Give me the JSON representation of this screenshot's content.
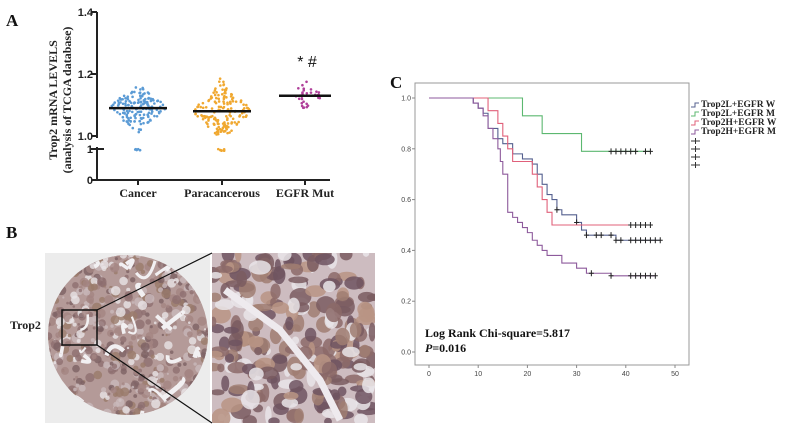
{
  "panels": {
    "a": "A",
    "b": "B",
    "c": "C"
  },
  "chart_data": [
    {
      "type": "scatter",
      "ylabel_line1": "Trop2 mRNA LEVELS",
      "ylabel_line2": "(analysis of TCGA database)",
      "y_ticks_upper": [
        "1.4",
        "1.2",
        "1.0"
      ],
      "y_ticks_lower": [
        "1",
        "0"
      ],
      "ylim": [
        0,
        1.4
      ],
      "axis_break": [
        1.0,
        1.0
      ],
      "categories": [
        "Cancer",
        "Paracancerous",
        "EGFR Mut"
      ],
      "means": [
        1.09,
        1.08,
        1.13
      ],
      "ranges": [
        [
          0.96,
          1.16
        ],
        [
          0.94,
          1.19
        ],
        [
          1.08,
          1.18
        ]
      ],
      "point_colors": [
        "#5b9bd5",
        "#f0a830",
        "#b0409a"
      ],
      "annotation": "* #"
    },
    {
      "type": "line",
      "subtype": "kaplan-meier",
      "x_ticks": [
        "0",
        "10",
        "20",
        "30",
        "40",
        "50"
      ],
      "y_ticks": [
        "0.0",
        "0.2",
        "0.4",
        "0.6",
        "0.8",
        "1.0"
      ],
      "xlim": [
        0,
        50
      ],
      "ylim": [
        0,
        1
      ],
      "series": [
        {
          "name": "Trop2L+EGFR W",
          "color": "#55608f",
          "steps": [
            [
              0,
              1
            ],
            [
              9,
              0.98
            ],
            [
              10,
              0.96
            ],
            [
              11,
              0.94
            ],
            [
              12,
              0.88
            ],
            [
              14,
              0.84
            ],
            [
              15,
              0.82
            ],
            [
              17,
              0.78
            ],
            [
              19,
              0.76
            ],
            [
              21,
              0.74
            ],
            [
              22,
              0.7
            ],
            [
              23,
              0.66
            ],
            [
              24,
              0.62
            ],
            [
              25,
              0.6
            ],
            [
              26,
              0.56
            ],
            [
              27,
              0.54
            ],
            [
              30,
              0.51
            ],
            [
              31,
              0.48
            ],
            [
              32,
              0.46
            ],
            [
              38,
              0.44
            ]
          ],
          "end": 47,
          "censored": [
            26,
            30,
            32,
            34,
            35,
            37,
            38,
            39,
            41,
            42,
            43,
            44,
            45,
            46,
            47
          ]
        },
        {
          "name": "Trop2L+EGFR M",
          "color": "#5cb870",
          "steps": [
            [
              0,
              1
            ],
            [
              19,
              0.93
            ],
            [
              23,
              0.86
            ],
            [
              31,
              0.79
            ]
          ],
          "end": 45,
          "censored": [
            37,
            38,
            39,
            40,
            41,
            42,
            44,
            45
          ]
        },
        {
          "name": "Trop2H+EGFR W",
          "color": "#e0607a",
          "steps": [
            [
              0,
              1
            ],
            [
              12,
              0.95
            ],
            [
              14,
              0.9
            ],
            [
              15,
              0.85
            ],
            [
              16,
              0.8
            ],
            [
              17,
              0.75
            ],
            [
              21,
              0.7
            ],
            [
              22,
              0.65
            ],
            [
              23,
              0.6
            ],
            [
              24,
              0.55
            ],
            [
              25,
              0.5
            ]
          ],
          "end": 45,
          "censored": [
            41,
            42,
            43,
            44,
            45
          ]
        },
        {
          "name": "Trop2H+EGFR M",
          "color": "#8d5a9c",
          "steps": [
            [
              0,
              1
            ],
            [
              9,
              0.98
            ],
            [
              10,
              0.96
            ],
            [
              11,
              0.93
            ],
            [
              12,
              0.88
            ],
            [
              13,
              0.84
            ],
            [
              14,
              0.8
            ],
            [
              14.5,
              0.75
            ],
            [
              15,
              0.7
            ],
            [
              16,
              0.55
            ],
            [
              17,
              0.53
            ],
            [
              18,
              0.51
            ],
            [
              19,
              0.49
            ],
            [
              20,
              0.47
            ],
            [
              21,
              0.44
            ],
            [
              22,
              0.42
            ],
            [
              23,
              0.4
            ],
            [
              24,
              0.38
            ],
            [
              27,
              0.35
            ],
            [
              30,
              0.33
            ],
            [
              32,
              0.31
            ],
            [
              37,
              0.3
            ]
          ],
          "end": 46,
          "censored": [
            33,
            37,
            41,
            42,
            43,
            44,
            45,
            46
          ]
        }
      ],
      "stat_line1": "Log Rank Chi-square=5.817",
      "stat_p_label": "P",
      "stat_p_value": "=0.016"
    }
  ],
  "histology": {
    "label": "Trop2"
  }
}
